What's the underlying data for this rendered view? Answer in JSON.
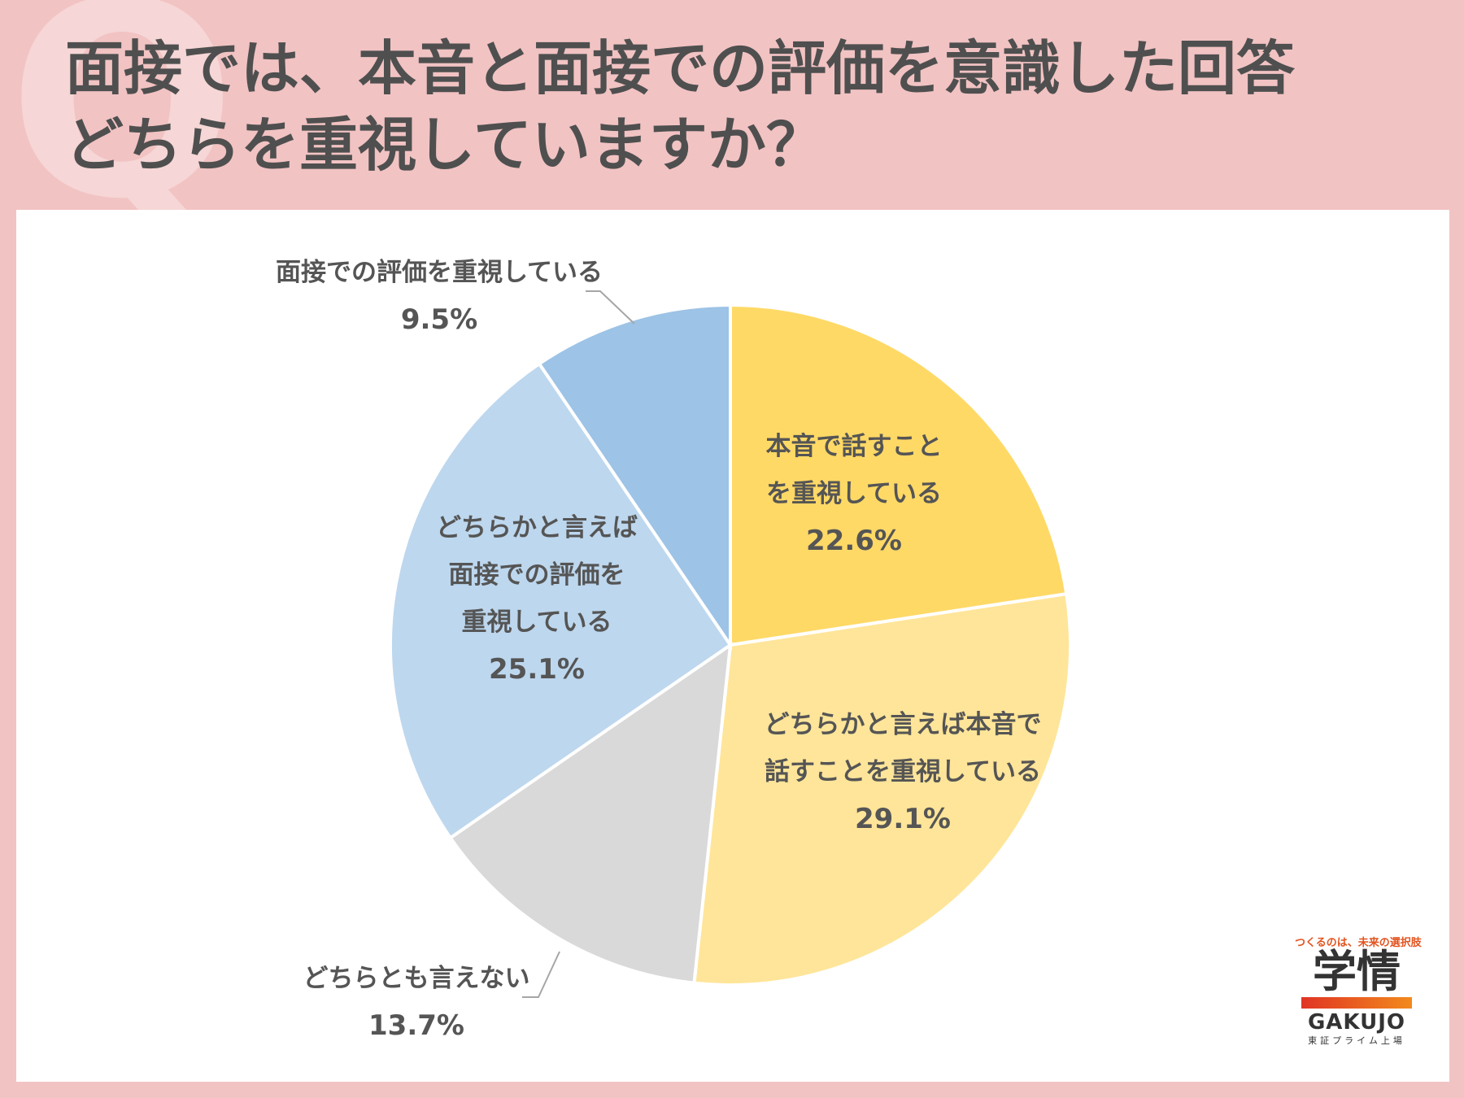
{
  "title": {
    "line1": "面接では、本音と面接での評価を意識した回答",
    "line2": "どちらを重視していますか？"
  },
  "watermark": "Q",
  "chart_data": {
    "type": "pie",
    "start": "12 o'clock, clockwise",
    "slices": [
      {
        "label_lines": [
          "本音で話すこと",
          "を重視している"
        ],
        "percent_label": "22.6%",
        "value": 22.6,
        "color": "#ffd966"
      },
      {
        "label_lines": [
          "どちらかと言えば本音で",
          "話すことを重視している"
        ],
        "percent_label": "29.1%",
        "value": 29.1,
        "color": "#ffe599"
      },
      {
        "label_lines": [
          "どちらとも言えない"
        ],
        "percent_label": "13.7%",
        "value": 13.7,
        "color": "#d9d9d9"
      },
      {
        "label_lines": [
          "どちらかと言えば",
          "面接での評価を",
          "重視している"
        ],
        "percent_label": "25.1%",
        "value": 25.1,
        "color": "#bdd7ee"
      },
      {
        "label_lines": [
          "面接での評価を重視している"
        ],
        "percent_label": "9.5%",
        "value": 9.5,
        "color": "#9dc3e6"
      }
    ]
  },
  "logo": {
    "tagline": "つくるのは、未来の選択肢",
    "name_jp": "学情",
    "name_en": "GAKUJO",
    "sub": "東証プライム上場"
  }
}
